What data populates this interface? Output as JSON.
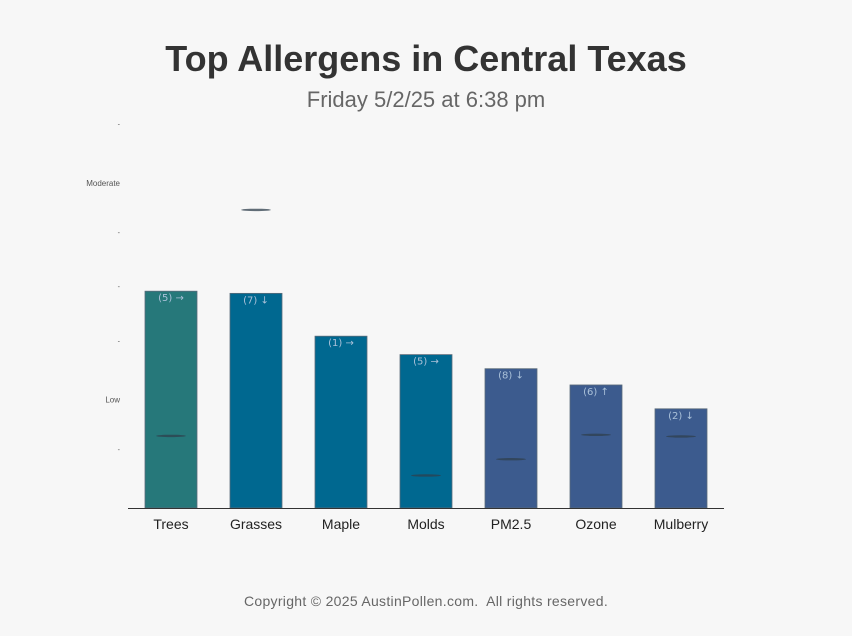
{
  "header": {
    "title": "Top Allergens in Central Texas",
    "subtitle": "Friday 5/2/25 at 6:38 pm"
  },
  "footer": {
    "copyright": "Copyright © 2025 AustinPollen.com.  All rights reserved."
  },
  "colors": {
    "trees": "#26787a",
    "main": "#006890",
    "dark": "#3c5b8e",
    "label": "#a9c0d8"
  },
  "chart_data": {
    "type": "bar",
    "categories": [
      "Trees",
      "Grasses",
      "Maple",
      "Molds",
      "PM2.5",
      "Ozone",
      "Mulberry"
    ],
    "values": [
      4.0,
      3.96,
      3.17,
      2.83,
      2.57,
      2.27,
      1.83
    ],
    "labels": [
      "(5) →",
      "(7) ↓",
      "(1) →",
      "(5) →",
      "(8) ↓",
      "(6) ↑",
      "(2) ↓"
    ],
    "markers": [
      1.33,
      5.5,
      null,
      0.6,
      0.9,
      1.35,
      1.32
    ],
    "bar_color_keys": [
      "trees",
      "main",
      "main",
      "main",
      "dark",
      "dark",
      "dark"
    ],
    "y_ticks": [
      {
        "value": 1,
        "label": "-"
      },
      {
        "value": 2,
        "label": "Low"
      },
      {
        "value": 3,
        "label": "-"
      },
      {
        "value": 4,
        "label": "-"
      },
      {
        "value": 5,
        "label": "-"
      },
      {
        "value": 6,
        "label": "Moderate"
      },
      {
        "value": 7,
        "label": "-"
      }
    ],
    "ylim": [
      0,
      7
    ],
    "xlabel": "",
    "ylabel": ""
  }
}
